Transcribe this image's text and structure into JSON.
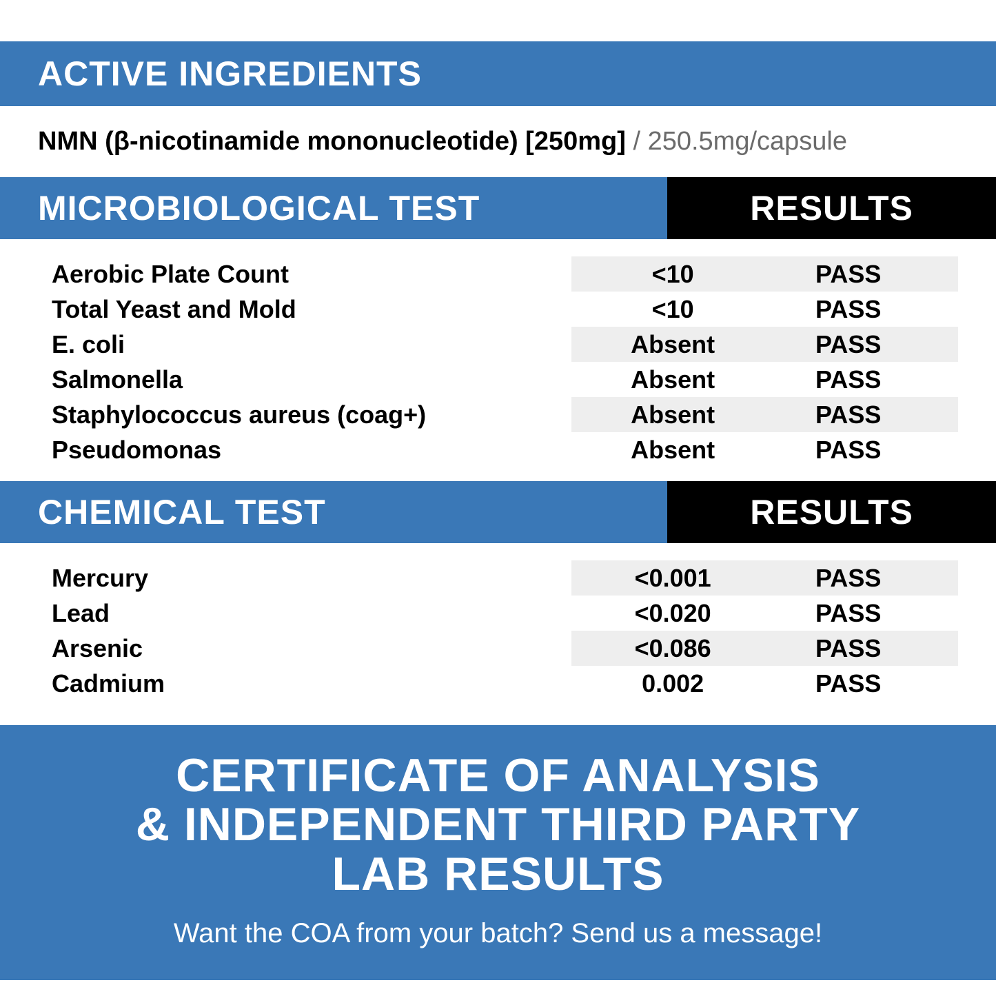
{
  "colors": {
    "primary_blue": "#3a78b7",
    "black": "#000000",
    "white": "#ffffff",
    "shade": "#eeeeee",
    "muted_text": "#6b6b6b"
  },
  "active_ingredients": {
    "header": "ACTIVE INGREDIENTS",
    "bold_part": "NMN (β-nicotinamide mononucleotide) [250mg]",
    "separator": " / ",
    "light_part": "250.5mg/capsule"
  },
  "microbiological": {
    "header_left": "MICROBIOLOGICAL TEST",
    "header_right": "RESULTS",
    "rows": [
      {
        "name": "Aerobic Plate Count",
        "value": "<10",
        "status": "PASS",
        "shade": true
      },
      {
        "name": "Total Yeast and Mold",
        "value": "<10",
        "status": "PASS",
        "shade": false
      },
      {
        "name": "E. coli",
        "value": "Absent",
        "status": "PASS",
        "shade": true
      },
      {
        "name": "Salmonella",
        "value": "Absent",
        "status": "PASS",
        "shade": false
      },
      {
        "name": "Staphylococcus aureus (coag+)",
        "value": "Absent",
        "status": "PASS",
        "shade": true
      },
      {
        "name": "Pseudomonas",
        "value": "Absent",
        "status": "PASS",
        "shade": false
      }
    ]
  },
  "chemical": {
    "header_left": "CHEMICAL TEST",
    "header_right": "RESULTS",
    "rows": [
      {
        "name": "Mercury",
        "value": "<0.001",
        "status": "PASS",
        "shade": true
      },
      {
        "name": "Lead",
        "value": "<0.020",
        "status": "PASS",
        "shade": false
      },
      {
        "name": "Arsenic",
        "value": "<0.086",
        "status": "PASS",
        "shade": true
      },
      {
        "name": "Cadmium",
        "value": "0.002",
        "status": "PASS",
        "shade": false
      }
    ]
  },
  "footer": {
    "line1": "CERTIFICATE OF ANALYSIS",
    "line2": "& INDEPENDENT THIRD PARTY",
    "line3": "LAB RESULTS",
    "sub": "Want the COA from your batch? Send us a message!"
  }
}
